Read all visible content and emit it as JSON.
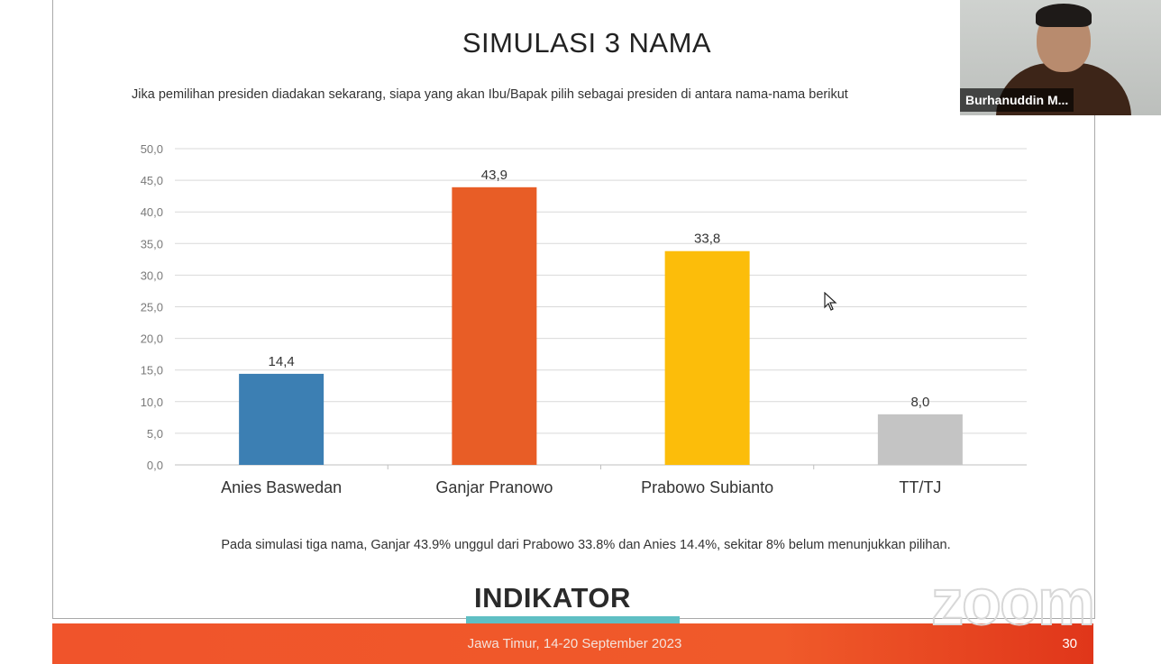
{
  "slide": {
    "title": "SIMULASI 3 NAMA",
    "question": "Jika pemilihan presiden diadakan sekarang, siapa yang akan Ibu/Bapak pilih sebagai presiden di antara nama-nama berikut",
    "caption": "Pada simulasi tiga nama, Ganjar 43.9% unggul dari Prabowo 33.8% dan Anies 14.4%, sekitar 8% belum menunjukkan pilihan.",
    "logo_text": "INDIKATOR",
    "footer_text": "Jawa Timur, 14-20 September 2023",
    "page_number": "30"
  },
  "webcam": {
    "participant_name": "Burhanuddin M..."
  },
  "watermark": {
    "text": "zoom"
  },
  "chart_data": {
    "type": "bar",
    "categories": [
      "Anies Baswedan",
      "Ganjar Pranowo",
      "Prabowo Subianto",
      "TT/TJ"
    ],
    "values": [
      14.4,
      43.9,
      33.8,
      8.0
    ],
    "value_labels": [
      "14,4",
      "43,9",
      "33,8",
      "8,0"
    ],
    "colors": [
      "#3c7fb3",
      "#e85d26",
      "#fcbd0a",
      "#c4c4c4"
    ],
    "ylim": [
      0,
      50
    ],
    "yticks": [
      "0,0",
      "5,0",
      "10,0",
      "15,0",
      "20,0",
      "25,0",
      "30,0",
      "35,0",
      "40,0",
      "45,0",
      "50,0"
    ],
    "grid": true,
    "legend": "none"
  }
}
